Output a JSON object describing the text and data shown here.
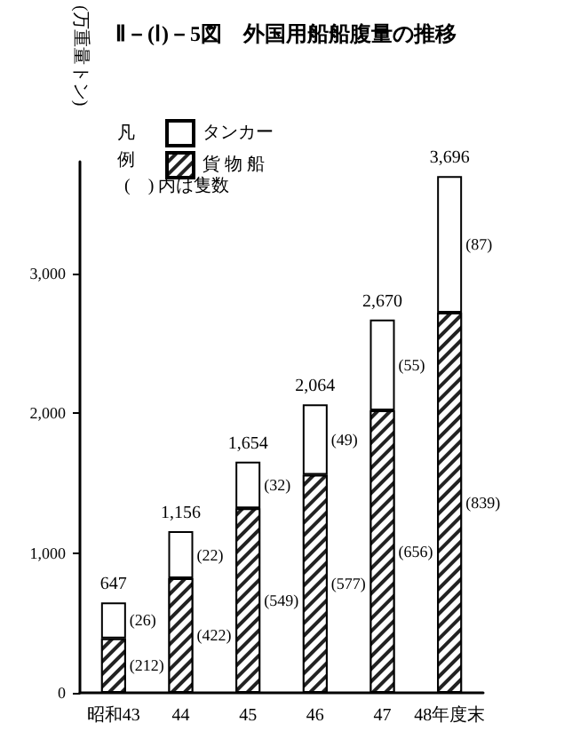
{
  "chart_data": {
    "type": "bar",
    "title": "Ⅱ－(Ⅰ)－5図　外国用船船腹量の推移",
    "ylabel": "(万重量トン)",
    "legend_title": "凡例",
    "categories": [
      "昭和43",
      "44",
      "45",
      "46",
      "47",
      "48年度末"
    ],
    "stacked": true,
    "series": [
      {
        "name": "貨 物 船",
        "color": "#222222",
        "values": [
          390,
          820,
          1320,
          1560,
          2020,
          2720
        ]
      },
      {
        "name": "タンカー",
        "color": "#ffffff",
        "values": [
          257,
          336,
          334,
          504,
          650,
          976
        ]
      }
    ],
    "totals": [
      "647",
      "1,156",
      "1,654",
      "2,064",
      "2,670",
      "3,696"
    ],
    "ylim": [
      0,
      3800
    ],
    "yticks": [
      0,
      {
        "value": 1000,
        "label": "1,000"
      },
      {
        "value": 2000,
        "label": "2,000"
      },
      {
        "value": 3000,
        "label": "3,000"
      }
    ],
    "grid": false,
    "legend": "top left",
    "annotations": [
      "(　) 内は隻数",
      "(212)",
      "(26)",
      "(422)",
      "(22)",
      "(549)",
      "(32)",
      "(577)",
      "(49)",
      "(656)",
      "(55)",
      "(839)",
      "(87)"
    ]
  }
}
